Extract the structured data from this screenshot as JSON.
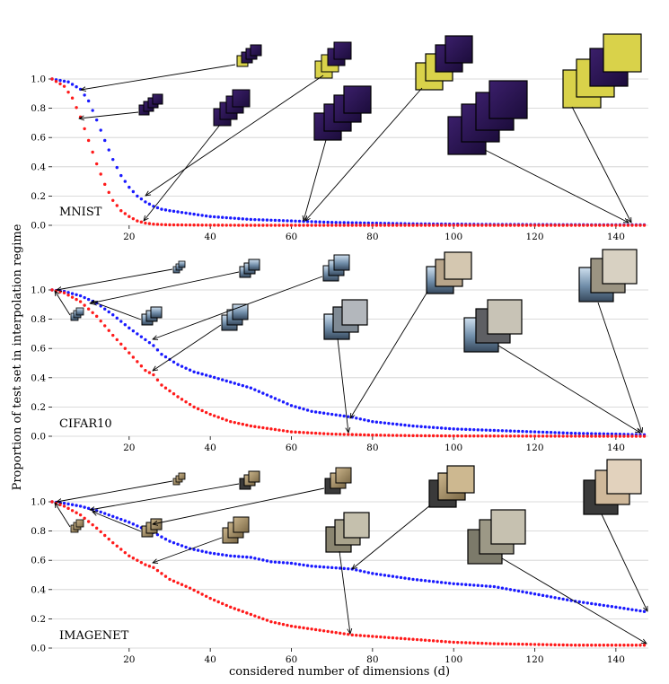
{
  "figure": {
    "ylabel": "Proportion of test set in interpolation regime",
    "xlabel": "considered number of dimensions (d)"
  },
  "chart_data": [
    {
      "type": "scatter",
      "panel_label": "MNIST",
      "xlim": [
        1,
        148
      ],
      "ylim": [
        0,
        1.0
      ],
      "xticks": [
        20,
        40,
        60,
        80,
        100,
        120,
        140
      ],
      "yticks": [
        0.0,
        0.2,
        0.4,
        0.6,
        0.8,
        1.0
      ],
      "grid": "horizontal",
      "series": [
        {
          "color": "#1a1aff",
          "x": [
            1,
            5,
            8,
            10,
            12,
            14,
            16,
            18,
            20,
            22,
            24,
            26,
            28,
            30,
            35,
            40,
            45,
            50,
            55,
            60,
            70,
            80,
            90,
            100,
            110,
            120,
            130,
            140,
            147
          ],
          "y": [
            1.0,
            0.98,
            0.93,
            0.85,
            0.72,
            0.58,
            0.45,
            0.34,
            0.26,
            0.2,
            0.16,
            0.13,
            0.11,
            0.1,
            0.08,
            0.06,
            0.05,
            0.04,
            0.035,
            0.03,
            0.02,
            0.015,
            0.01,
            0.008,
            0.006,
            0.005,
            0.004,
            0.003,
            0.003
          ]
        },
        {
          "color": "#ff1a1a",
          "x": [
            1,
            4,
            6,
            8,
            10,
            12,
            14,
            16,
            18,
            20,
            22,
            24,
            26,
            28,
            30,
            40,
            50,
            60,
            80,
            100,
            120,
            140,
            147
          ],
          "y": [
            1.0,
            0.95,
            0.87,
            0.74,
            0.58,
            0.42,
            0.28,
            0.17,
            0.1,
            0.06,
            0.03,
            0.015,
            0.008,
            0.005,
            0.003,
            0.001,
            0,
            0,
            0,
            0,
            0,
            0,
            0
          ]
        }
      ]
    },
    {
      "type": "scatter",
      "panel_label": "CIFAR10",
      "xlim": [
        1,
        148
      ],
      "ylim": [
        0,
        1.0
      ],
      "xticks": [
        20,
        40,
        60,
        80,
        100,
        120,
        140
      ],
      "yticks": [
        0.0,
        0.2,
        0.4,
        0.6,
        0.8,
        1.0
      ],
      "grid": "horizontal",
      "series": [
        {
          "color": "#1a1aff",
          "x": [
            1,
            4,
            8,
            12,
            16,
            20,
            24,
            26,
            28,
            32,
            36,
            40,
            45,
            50,
            55,
            60,
            65,
            70,
            75,
            80,
            90,
            100,
            110,
            120,
            130,
            140,
            147
          ],
          "y": [
            1.0,
            0.99,
            0.96,
            0.91,
            0.83,
            0.74,
            0.66,
            0.62,
            0.56,
            0.49,
            0.44,
            0.41,
            0.37,
            0.33,
            0.27,
            0.21,
            0.17,
            0.15,
            0.13,
            0.1,
            0.07,
            0.05,
            0.04,
            0.03,
            0.02,
            0.015,
            0.01
          ]
        },
        {
          "color": "#ff1a1a",
          "x": [
            1,
            4,
            8,
            12,
            16,
            20,
            24,
            26,
            28,
            32,
            36,
            40,
            45,
            50,
            60,
            70,
            80,
            90,
            100,
            120,
            140,
            147
          ],
          "y": [
            1.0,
            0.98,
            0.92,
            0.82,
            0.69,
            0.57,
            0.45,
            0.42,
            0.35,
            0.27,
            0.2,
            0.15,
            0.1,
            0.07,
            0.03,
            0.015,
            0.008,
            0.004,
            0.002,
            0.001,
            0,
            0
          ]
        }
      ]
    },
    {
      "type": "scatter",
      "panel_label": "IMAGENET",
      "xlim": [
        1,
        148
      ],
      "ylim": [
        0,
        1.0
      ],
      "xticks": [
        20,
        40,
        60,
        80,
        100,
        120,
        140
      ],
      "yticks": [
        0.0,
        0.2,
        0.4,
        0.6,
        0.8,
        1.0
      ],
      "grid": "horizontal",
      "series": [
        {
          "color": "#1a1aff",
          "x": [
            1,
            4,
            8,
            12,
            16,
            20,
            24,
            26,
            30,
            35,
            40,
            45,
            50,
            55,
            60,
            65,
            70,
            75,
            80,
            90,
            100,
            110,
            120,
            130,
            140,
            147
          ],
          "y": [
            1.0,
            0.99,
            0.97,
            0.94,
            0.9,
            0.86,
            0.81,
            0.79,
            0.73,
            0.68,
            0.65,
            0.63,
            0.62,
            0.59,
            0.58,
            0.56,
            0.55,
            0.54,
            0.51,
            0.47,
            0.44,
            0.42,
            0.37,
            0.32,
            0.28,
            0.25
          ]
        },
        {
          "color": "#ff1a1a",
          "x": [
            1,
            4,
            8,
            12,
            16,
            20,
            24,
            26,
            30,
            35,
            40,
            45,
            50,
            55,
            60,
            65,
            70,
            75,
            80,
            90,
            100,
            110,
            120,
            130,
            140,
            147
          ],
          "y": [
            1.0,
            0.97,
            0.91,
            0.82,
            0.72,
            0.63,
            0.57,
            0.55,
            0.47,
            0.41,
            0.34,
            0.28,
            0.23,
            0.18,
            0.15,
            0.13,
            0.11,
            0.09,
            0.08,
            0.06,
            0.04,
            0.03,
            0.025,
            0.02,
            0.02,
            0.02
          ]
        }
      ]
    }
  ]
}
